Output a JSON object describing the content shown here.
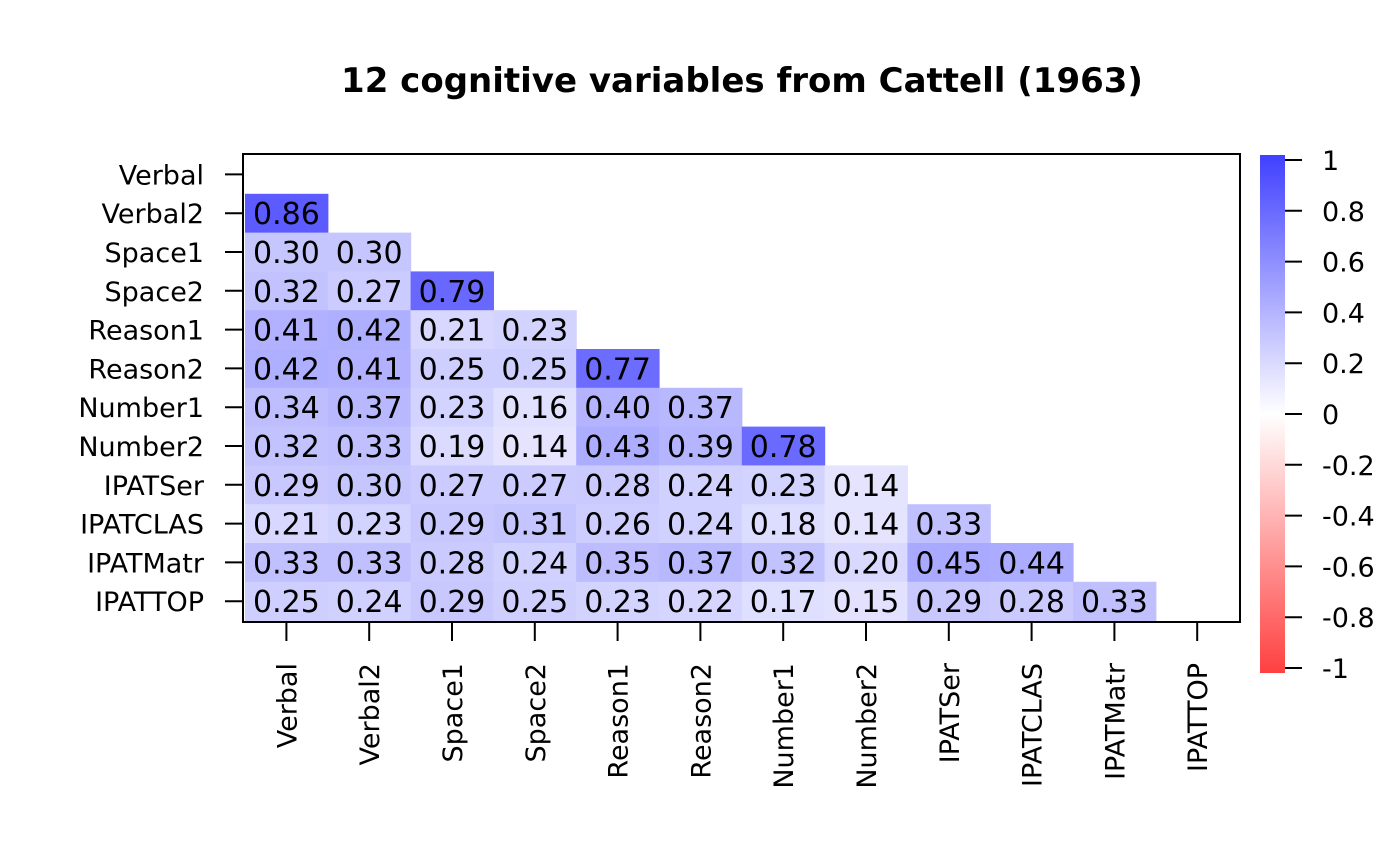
{
  "chart_data": {
    "type": "heatmap",
    "title": "12 cognitive variables from Cattell (1963)",
    "variables": [
      "Verbal",
      "Verbal2",
      "Space1",
      "Space2",
      "Reason1",
      "Reason2",
      "Number1",
      "Number2",
      "IPATSer",
      "IPATCLAS",
      "IPATMatr",
      "IPATTOP"
    ],
    "matrix": [
      [],
      [
        "0.86"
      ],
      [
        "0.30",
        "0.30"
      ],
      [
        "0.32",
        "0.27",
        "0.79"
      ],
      [
        "0.41",
        "0.42",
        "0.21",
        "0.23"
      ],
      [
        "0.42",
        "0.41",
        "0.25",
        "0.25",
        "0.77"
      ],
      [
        "0.34",
        "0.37",
        "0.23",
        "0.16",
        "0.40",
        "0.37"
      ],
      [
        "0.32",
        "0.33",
        "0.19",
        "0.14",
        "0.43",
        "0.39",
        "0.78"
      ],
      [
        "0.29",
        "0.30",
        "0.27",
        "0.27",
        "0.28",
        "0.24",
        "0.23",
        "0.14"
      ],
      [
        "0.21",
        "0.23",
        "0.29",
        "0.31",
        "0.26",
        "0.24",
        "0.18",
        "0.14",
        "0.33"
      ],
      [
        "0.33",
        "0.33",
        "0.28",
        "0.24",
        "0.35",
        "0.37",
        "0.32",
        "0.20",
        "0.45",
        "0.44"
      ],
      [
        "0.25",
        "0.24",
        "0.29",
        "0.25",
        "0.23",
        "0.22",
        "0.17",
        "0.15",
        "0.29",
        "0.28",
        "0.33"
      ]
    ],
    "color_scale": {
      "min": -1,
      "max": 1,
      "low_color": "#ff4040",
      "mid_color": "#ffffff",
      "high_color": "#4040ff",
      "ticks": [
        "1",
        "0.8",
        "0.6",
        "0.4",
        "0.2",
        "0",
        "-0.2",
        "-0.4",
        "-0.6",
        "-0.8",
        "-1"
      ]
    },
    "legend_placement": "right",
    "grid": false
  }
}
